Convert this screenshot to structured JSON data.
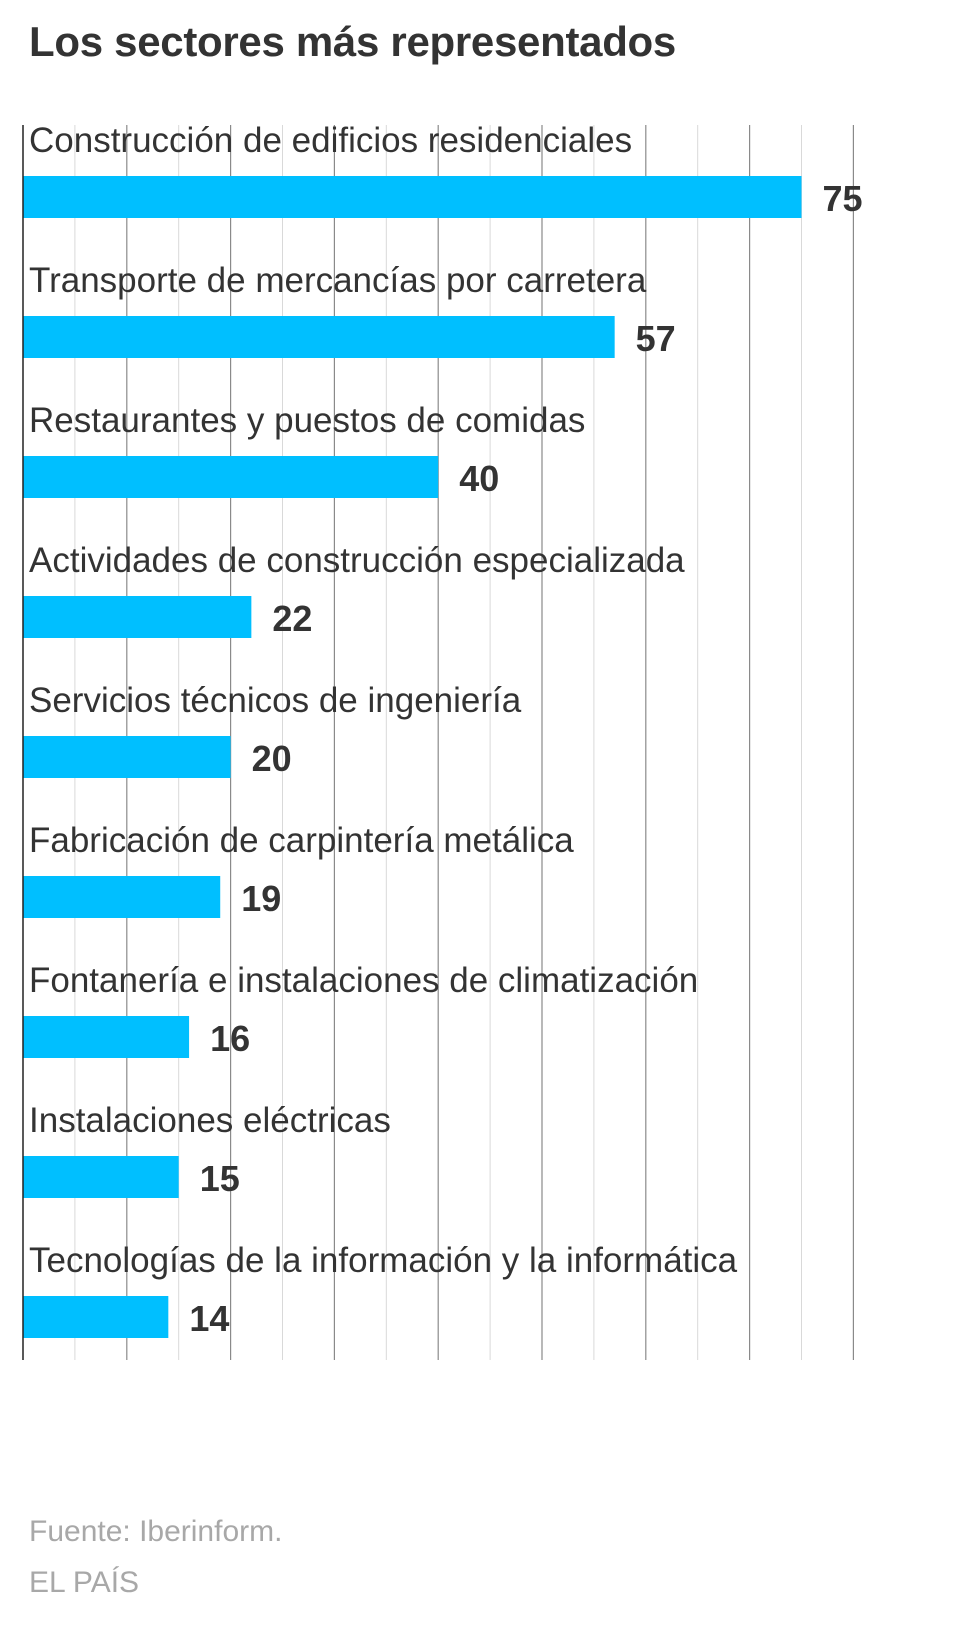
{
  "title": "Los sectores más representados",
  "chart_data": {
    "type": "bar",
    "orientation": "horizontal",
    "categories": [
      "Construcción de edificios residenciales",
      "Transporte de mercancías por carretera",
      "Restaurantes y puestos de comidas",
      "Actividades de construcción especializada",
      "Servicios técnicos de ingeniería",
      "Fabricación de carpintería metálica",
      "Fontanería e instalaciones de climatización",
      "Instalaciones eléctricas",
      "Tecnologías de la información y la informática"
    ],
    "values": [
      75,
      57,
      40,
      22,
      20,
      19,
      16,
      15,
      14
    ],
    "xlim": [
      0,
      80
    ],
    "grid": true,
    "legend": "none",
    "bar_color": "#00bfff",
    "grid_color_major": "#8a8a8a",
    "grid_color_minor": "#d9d9d9",
    "axis_color": "#222222",
    "text_color": "#333333"
  },
  "footer": {
    "source": "Fuente: Iberinform.",
    "credit": "EL PAÍS"
  }
}
